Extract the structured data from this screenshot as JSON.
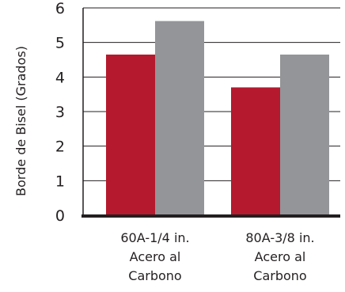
{
  "chart_data": {
    "type": "bar",
    "title": "",
    "xlabel": "",
    "ylabel": "Borde de Bisel (Grados)",
    "ylim": [
      0,
      6
    ],
    "yticks": [
      0,
      1,
      2,
      3,
      4,
      5,
      6
    ],
    "grid": true,
    "legend": "none",
    "categories": [
      [
        "60A-1/4 in.",
        "Acero al",
        "Carbono"
      ],
      [
        "80A-3/8 in.",
        "Acero al",
        "Carbono"
      ]
    ],
    "series": [
      {
        "color": "#b5192d",
        "values": [
          4.65,
          3.7
        ]
      },
      {
        "color": "#939598",
        "values": [
          5.62,
          4.65
        ]
      }
    ]
  }
}
